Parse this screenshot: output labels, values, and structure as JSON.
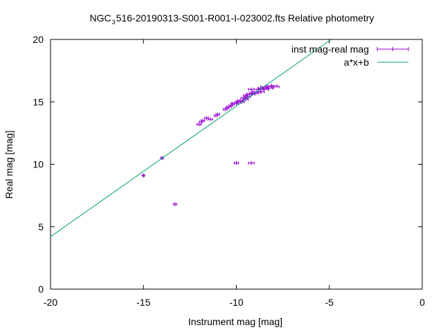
{
  "chart_data": {
    "type": "scatter",
    "title_parts": {
      "before": "NGC",
      "sub": "3",
      "after": "516-20190313-S001-R001-I-023002.fts Relative photometry"
    },
    "xlabel": "Instrument mag [mag]",
    "ylabel": "Real mag [mag]",
    "xlim": [
      -20,
      0
    ],
    "ylim": [
      0,
      20
    ],
    "xticks": [
      -20,
      -15,
      -10,
      -5,
      0
    ],
    "yticks": [
      0,
      5,
      10,
      15,
      20
    ],
    "xtick_labels": [
      "-20",
      "-15",
      "-10",
      "-5",
      "0"
    ],
    "ytick_labels": [
      "0",
      "5",
      "10",
      "15",
      "20"
    ],
    "grid": false,
    "legend_position": "top-right",
    "series": [
      {
        "name": "inst mag-real mag",
        "kind": "errorbar-points",
        "color": "#9400d3",
        "x": [
          -15.0,
          -14.0,
          -13.3,
          -12.0,
          -11.9,
          -11.8,
          -11.6,
          -11.4,
          -11.1,
          -11.0,
          -10.6,
          -10.5,
          -10.4,
          -10.3,
          -10.2,
          -10.1,
          -10.0,
          -9.9,
          -9.8,
          -9.7,
          -9.6,
          -9.5,
          -9.5,
          -9.4,
          -9.3,
          -9.2,
          -9.2,
          -9.1,
          -9.0,
          -8.9,
          -8.8,
          -8.7,
          -8.6,
          -8.5,
          -8.4,
          -8.3,
          -8.1,
          -8.0,
          -10.0,
          -9.2
        ],
        "y": [
          9.1,
          10.5,
          6.8,
          13.2,
          13.4,
          13.5,
          13.7,
          13.6,
          13.9,
          14.0,
          14.4,
          14.5,
          14.6,
          14.7,
          14.8,
          14.9,
          14.9,
          15.0,
          15.1,
          15.0,
          15.3,
          15.2,
          15.5,
          15.4,
          15.6,
          15.6,
          16.0,
          15.7,
          15.7,
          15.8,
          16.0,
          15.8,
          16.1,
          16.0,
          16.2,
          16.1,
          16.3,
          16.2,
          10.1,
          10.1
        ],
        "xerr": [
          0.05,
          0.05,
          0.08,
          0.12,
          0.1,
          0.1,
          0.1,
          0.12,
          0.1,
          0.1,
          0.1,
          0.1,
          0.12,
          0.1,
          0.1,
          0.15,
          0.1,
          0.12,
          0.15,
          0.12,
          0.15,
          0.15,
          0.12,
          0.15,
          0.15,
          0.2,
          0.15,
          0.2,
          0.2,
          0.25,
          0.25,
          0.2,
          0.25,
          0.25,
          0.3,
          0.25,
          0.3,
          0.3,
          0.12,
          0.15
        ]
      },
      {
        "name": "a*x+b",
        "kind": "line",
        "color": "#009e73",
        "x": [
          -20,
          -4.9
        ],
        "y": [
          4.2,
          20.0
        ]
      }
    ]
  }
}
